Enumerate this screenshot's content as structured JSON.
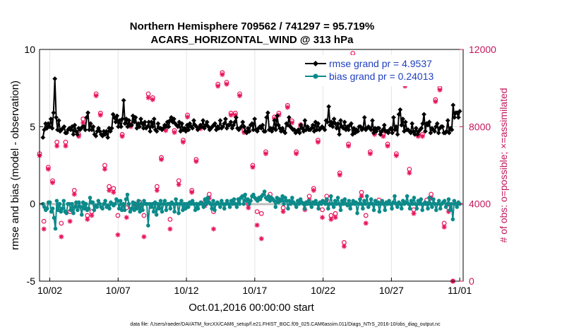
{
  "chart_data": {
    "type": "line",
    "title_line1": "Northern Hemisphere 709562 / 741297 = 95.719%",
    "title_line2": "ACARS_HORIZONTAL_WIND @ 313 hPa",
    "xlabel": "Oct.01,2016 00:00:00 start",
    "ylabel": "rmse and bias (model - observation)",
    "ylabel_right": "# of obs: o=possible; ×=assimilated",
    "footer": "data file: /Users/raeder/DAI/ATM_forcXX/CAM6_setup/f.e21.FHIST_BGC.f09_025.CAM6assim.011/Diags_NTrS_2016-10/obs_diag_output.nc",
    "x_ticks": [
      2,
      7,
      12,
      17,
      22,
      27,
      32
    ],
    "x_tick_labels": [
      "10/02",
      "10/07",
      "10/12",
      "10/17",
      "10/22",
      "10/27",
      "11/01"
    ],
    "xlim": [
      1.25,
      32.25
    ],
    "ylim": [
      -5,
      10
    ],
    "y_ticks": [
      -5,
      0,
      5,
      10
    ],
    "y_tick_labels": [
      "-5",
      "0",
      "5",
      "10"
    ],
    "ylim_right": [
      0,
      12000
    ],
    "y_ticks_right": [
      0,
      4000,
      8000,
      12000
    ],
    "y_tick_labels_right": [
      "0",
      "4000",
      "8000",
      "12000"
    ],
    "legend_position": "top-right",
    "series": [
      {
        "name": "rmse grand pr = 4.9537",
        "color": "#000000",
        "marker": "diamond",
        "values": [
          4.3,
          4.8,
          5.2,
          4.9,
          5.2,
          5.0,
          5.5,
          4.9,
          5.9,
          8.1,
          5.6,
          4.8,
          5.4,
          4.7,
          4.8,
          4.9,
          5.0,
          4.6,
          4.6,
          4.8,
          4.9,
          4.8,
          5.0,
          4.5,
          5.1,
          4.7,
          4.5,
          4.9,
          4.8,
          4.9,
          5.0,
          5.0,
          4.8,
          5.6,
          5.9,
          4.8,
          5.2,
          4.8,
          5.0,
          4.5,
          4.4,
          4.7,
          4.9,
          4.7,
          4.5,
          4.4,
          4.7,
          4.5,
          4.7,
          4.3,
          4.9,
          4.7,
          4.9,
          5.8,
          5.6,
          5.3,
          5.7,
          5.0,
          5.4,
          5.0,
          5.5,
          6.7,
          5.2,
          5.5,
          5.0,
          5.4,
          5.1,
          5.1,
          5.7,
          5.3,
          5.6,
          4.9,
          5.2,
          5.0,
          5.5,
          5.2,
          4.9,
          5.3,
          4.9,
          5.0,
          5.3,
          4.7,
          5.3,
          5.0,
          5.5,
          4.8,
          4.7,
          5.2,
          4.9,
          4.9,
          4.8,
          4.9,
          5.1,
          5.0,
          5.3,
          5.0,
          5.4,
          5.6,
          5.3,
          5.5,
          5.2,
          5.1,
          5.0,
          5.3,
          4.7,
          5.2,
          4.8,
          4.9,
          4.7,
          5.1,
          4.8,
          5.2,
          5.0,
          4.9,
          5.4,
          5.1,
          5.0,
          4.8,
          4.9,
          5.1,
          5.0,
          5.4,
          4.9,
          5.1,
          5.3,
          5.0,
          4.8,
          4.9,
          5.0,
          5.1,
          5.2,
          4.8,
          5.0,
          4.9,
          5.4,
          4.9,
          5.0,
          5.2,
          5.5,
          4.9,
          5.1,
          5.1,
          5.3,
          4.9,
          5.1,
          5.3,
          5.6,
          4.9,
          4.8,
          4.9,
          5.0,
          5.3,
          5.0,
          4.7,
          4.6,
          4.9,
          4.7,
          5.1,
          5.2,
          4.8,
          5.5,
          4.8,
          4.7,
          4.9,
          5.0,
          4.9,
          5.1,
          4.7,
          4.7,
          5.6,
          5.9,
          4.8,
          4.9,
          4.7,
          4.9,
          5.4,
          4.8,
          5.7,
          5.1,
          4.9,
          4.7,
          4.9,
          4.7,
          4.6,
          5.2,
          5.1,
          5.6,
          5.0,
          4.9,
          4.8,
          4.8,
          4.6,
          4.7,
          4.8,
          4.6,
          5.1,
          4.9,
          4.7,
          5.4,
          4.8,
          5.0,
          4.8,
          4.8,
          4.9,
          5.1,
          4.7,
          5.3,
          4.8,
          5.2,
          4.8,
          4.9,
          5.0,
          4.9,
          4.8,
          5.4,
          5.3,
          6.3,
          5.1,
          5.3,
          5.0,
          5.5,
          5.2,
          4.9,
          5.2,
          4.5,
          5.4,
          5.0,
          4.9,
          5.3,
          4.8,
          5.0,
          4.8,
          5.1,
          5.2,
          4.5,
          4.9,
          4.6,
          4.8,
          4.7,
          5.0,
          5.0,
          4.8,
          4.9,
          5.6,
          4.8,
          4.9,
          5.0,
          4.9,
          4.8,
          5.4,
          4.6,
          4.9,
          4.7,
          4.9,
          4.9,
          4.5,
          4.7,
          4.8,
          5.1,
          4.7,
          4.7,
          4.6,
          4.8,
          4.9,
          4.6,
          5.6,
          4.8,
          5.0,
          4.5,
          5.8,
          6.1,
          5.1,
          5.5,
          4.7,
          5.3,
          4.8,
          4.8,
          4.7,
          4.6,
          5.2,
          4.7,
          4.5,
          4.9,
          4.5,
          4.7,
          4.8,
          4.9,
          5.2,
          5.8,
          4.7,
          5.2,
          5.1,
          5.3,
          4.6,
          4.9,
          4.8,
          4.7,
          5.0,
          5.2,
          4.6,
          4.9,
          5.0,
          5.0,
          4.6,
          4.6,
          4.7,
          5.4,
          4.6,
          4.9,
          4.8,
          6.4,
          5.6,
          5.9,
          5.9,
          5.6,
          6.0
        ]
      },
      {
        "name": "bias grand pr = 0.24013",
        "color": "#0c8a8a",
        "marker": "circle",
        "values": [
          0.0,
          -0.2,
          -0.4,
          -0.3,
          0.1,
          0.1,
          -0.5,
          -0.3,
          -0.9,
          -1.6,
          0.2,
          -0.4,
          0.0,
          -0.5,
          -0.3,
          0.2,
          -0.5,
          -0.6,
          0.0,
          0.0,
          -0.4,
          0.0,
          -0.6,
          -0.2,
          0.1,
          -0.4,
          0.1,
          -0.2,
          -0.7,
          0.1,
          -0.3,
          0.0,
          -0.4,
          -0.3,
          0.4,
          0.1,
          0.1,
          -0.4,
          -0.1,
          -0.2,
          0.2,
          0.0,
          -0.2,
          -0.3,
          0.0,
          0.2,
          -0.2,
          -0.1,
          -0.3,
          0.1,
          0.0,
          -0.1,
          0.0,
          0.3,
          0.2,
          -0.3,
          0.2,
          -0.4,
          0.0,
          -0.4,
          0.3,
          0.6,
          0.0,
          -0.5,
          -0.3,
          0.1,
          -0.4,
          0.0,
          -0.3,
          0.2,
          -0.5,
          0.0,
          -0.4,
          0.2,
          0.0,
          0.0,
          -1.4,
          0.0,
          -0.2,
          0.0,
          -0.5,
          0.1,
          -0.7,
          0.0,
          -0.3,
          0.2,
          -0.5,
          0.0,
          0.2,
          -0.4,
          0.0,
          0.0,
          -0.3,
          0.1,
          0.0,
          -0.5,
          0.3,
          0.0,
          -0.6,
          0.0,
          0.2,
          -0.4,
          0.0,
          -0.3,
          0.0,
          -0.2,
          0.1,
          0.0,
          0.2,
          0.0,
          -0.4,
          0.0,
          -0.3,
          0.0,
          0.1,
          0.0,
          -0.2,
          0.3,
          0.0,
          0.4,
          0.1,
          0.0,
          -0.3,
          0.2,
          -0.4,
          0.0,
          0.1,
          0.0,
          -0.2,
          0.2,
          0.0,
          -0.3,
          0.0,
          0.2,
          0.0,
          -0.2,
          0.2,
          0.0,
          0.3,
          0.0,
          -0.2,
          0.3,
          0.0,
          0.4,
          0.5,
          0.0,
          0.6,
          0.2,
          0.3,
          0.0,
          0.2,
          0.5,
          0.6,
          0.4,
          0.3,
          0.2,
          0.4,
          0.3,
          0.5,
          0.6,
          0.8,
          0.4,
          0.3,
          0.5,
          0.2,
          0.4,
          0.3,
          0.2,
          -0.2,
          0.4,
          0.1,
          0.3,
          0.2,
          0.5,
          0.0,
          0.4,
          0.2,
          -0.3,
          0.2,
          0.0,
          0.4,
          0.1,
          0.0,
          -0.2,
          0.2,
          0.0,
          0.3,
          0.1,
          0.0,
          -0.3,
          0.1,
          0.0,
          0.2,
          0.0,
          -0.2,
          0.1,
          0.0,
          0.2,
          0.0,
          -0.3,
          0.1,
          0.0,
          0.2,
          0.1,
          0.0,
          0.3,
          -0.3,
          0.0,
          0.5,
          0.0,
          -0.2,
          0.2,
          0.0,
          0.4,
          0.0,
          -0.4,
          0.2,
          0.0,
          0.3,
          0.0,
          -0.1,
          0.2,
          -0.3,
          0.0,
          0.2,
          0.0,
          0.1,
          -0.6,
          0.0,
          0.3,
          0.0,
          -0.3,
          0.2,
          0.0,
          0.5,
          -0.2,
          0.0,
          0.3,
          0.0,
          -0.4,
          0.2,
          0.0,
          0.1,
          -0.5,
          0.0,
          0.2,
          0.0,
          -0.4,
          0.1,
          0.0,
          0.2,
          0.0,
          -0.3,
          0.1,
          0.5,
          0.0,
          -0.2,
          0.1,
          0.0,
          -0.3,
          0.2,
          0.0,
          0.1,
          0.5,
          0.0,
          -0.3,
          0.2,
          0.0,
          0.4,
          0.0,
          -0.3,
          0.2,
          0.0,
          0.3,
          -0.4,
          0.0,
          0.1,
          0.0,
          -0.3,
          0.4,
          0.0,
          -0.2,
          0.3,
          0.0,
          -0.4,
          0.0,
          0.2,
          -0.3,
          0.0,
          0.1,
          0.2,
          -0.2,
          0.0,
          0.3,
          -0.4,
          0.0,
          -1.0,
          0.2,
          0.0,
          -0.2,
          0.1,
          0.0
        ]
      },
      {
        "name": "possible",
        "color": "#e8145a",
        "marker": "o",
        "axis": "right",
        "values": [
          6600,
          3100,
          5900,
          5200,
          7200,
          3000,
          7200,
          3600,
          4700,
          7600,
          8400,
          3400,
          3600,
          9700,
          8700,
          6000,
          4900,
          4800,
          3400,
          7600,
          3800,
          8100,
          4000,
          4100,
          3400,
          9700,
          9500,
          4900,
          6400,
          7900,
          3200,
          7800,
          5200,
          7300,
          8600,
          4700,
          6300,
          8000,
          4100,
          4500,
          3600,
          10200,
          10800,
          10300,
          8700,
          8700,
          9700,
          7800,
          4000,
          6000,
          3600,
          3500,
          6700,
          4500,
          8500,
          8700,
          3800,
          9100,
          8300,
          6700,
          8100,
          4000,
          4400,
          4800,
          7300,
          3700,
          4400,
          3400,
          3500,
          5600,
          2000,
          7100,
          11800,
          11300,
          4600,
          3400,
          6700,
          7700,
          4200,
          7600,
          7100,
          11000,
          6600,
          11000,
          10300,
          5800,
          3700,
          7600,
          7600,
          4200,
          4500,
          9400,
          10000,
          3000,
          3800,
          0
        ]
      },
      {
        "name": "assimilated",
        "color": "#e8145a",
        "marker": "asterisk",
        "axis": "right",
        "values": [
          6500,
          2700,
          5800,
          5100,
          7000,
          2300,
          7000,
          3100,
          4500,
          7500,
          8200,
          3200,
          3400,
          9600,
          8600,
          5800,
          4700,
          4600,
          2400,
          7500,
          3300,
          8000,
          3800,
          3800,
          2300,
          9500,
          9400,
          4700,
          6300,
          7800,
          2700,
          7700,
          5000,
          7200,
          8500,
          4600,
          6200,
          7900,
          3900,
          4300,
          2700,
          10100,
          10700,
          10200,
          8600,
          8600,
          9600,
          7700,
          3800,
          5900,
          2900,
          2200,
          6600,
          4300,
          8400,
          8600,
          3600,
          9000,
          8200,
          6600,
          8000,
          3700,
          4200,
          4700,
          7200,
          3300,
          4200,
          3200,
          3300,
          5500,
          1800,
          7000,
          11600,
          11000,
          4400,
          3000,
          6600,
          7600,
          4000,
          7500,
          7000,
          10800,
          6500,
          10900,
          10100,
          5600,
          3500,
          7500,
          7500,
          4000,
          4300,
          9300,
          9900,
          2800,
          3600,
          0
        ]
      }
    ]
  }
}
